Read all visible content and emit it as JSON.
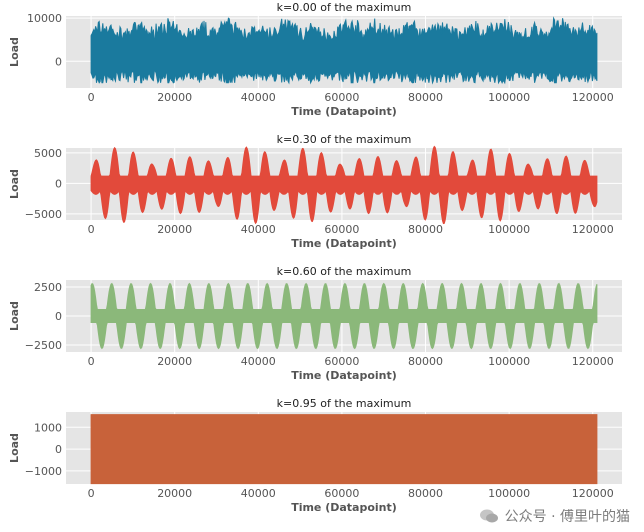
{
  "chart_data": [
    {
      "type": "line",
      "title": "k=0.00 of the maximum",
      "xlabel": "Time (Datapoint)",
      "ylabel": "Load",
      "xlim": [
        -6000,
        127000
      ],
      "ylim": [
        -6200,
        10500
      ],
      "xticks": [
        0,
        20000,
        40000,
        60000,
        80000,
        100000,
        120000
      ],
      "yticks": [
        0,
        10000
      ],
      "color": "#1a7a9e",
      "signal": "broadband noise",
      "x_range": [
        0,
        121000
      ],
      "envelope_peak": 10000,
      "envelope_trough": -5000,
      "period": null
    },
    {
      "type": "line",
      "title": "k=0.30 of the maximum",
      "xlabel": "Time (Datapoint)",
      "ylabel": "Load",
      "xlim": [
        -6000,
        127000
      ],
      "ylim": [
        -6000,
        5800
      ],
      "xticks": [
        0,
        20000,
        40000,
        60000,
        80000,
        100000,
        120000
      ],
      "yticks": [
        -5000,
        0,
        5000
      ],
      "color": "#e24a3b",
      "signal": "modulated oscillation",
      "x_range": [
        0,
        121000
      ],
      "envelope_peak": 5200,
      "envelope_trough": -5200,
      "period": 4500
    },
    {
      "type": "line",
      "title": "k=0.60 of the maximum",
      "xlabel": "Time (Datapoint)",
      "ylabel": "Load",
      "xlim": [
        -6000,
        127000
      ],
      "ylim": [
        -3100,
        3100
      ],
      "xticks": [
        0,
        20000,
        40000,
        60000,
        80000,
        100000,
        120000
      ],
      "yticks": [
        -2500,
        0,
        2500
      ],
      "color": "#8bb87a",
      "signal": "periodic oscillation",
      "x_range": [
        0,
        121000
      ],
      "envelope_peak": 2800,
      "envelope_trough": -2800,
      "period": 4650
    },
    {
      "type": "line",
      "title": "k=0.95 of the maximum",
      "xlabel": "Time (Datapoint)",
      "ylabel": "Load",
      "xlim": [
        -6000,
        127000
      ],
      "ylim": [
        -1600,
        1700
      ],
      "xticks": [
        0,
        20000,
        40000,
        60000,
        80000,
        100000,
        120000
      ],
      "yticks": [
        -1000,
        0,
        1000
      ],
      "color": "#c8623a",
      "signal": "dense constant-amplitude",
      "x_range": [
        0,
        121000
      ],
      "envelope_peak": 1580,
      "envelope_trough": -1580,
      "period": null
    }
  ],
  "watermark": {
    "text": "公众号 · 傅里叶的猫",
    "icon": "wechat-icon"
  },
  "panel_background": "#e5e5e5",
  "grid": true
}
